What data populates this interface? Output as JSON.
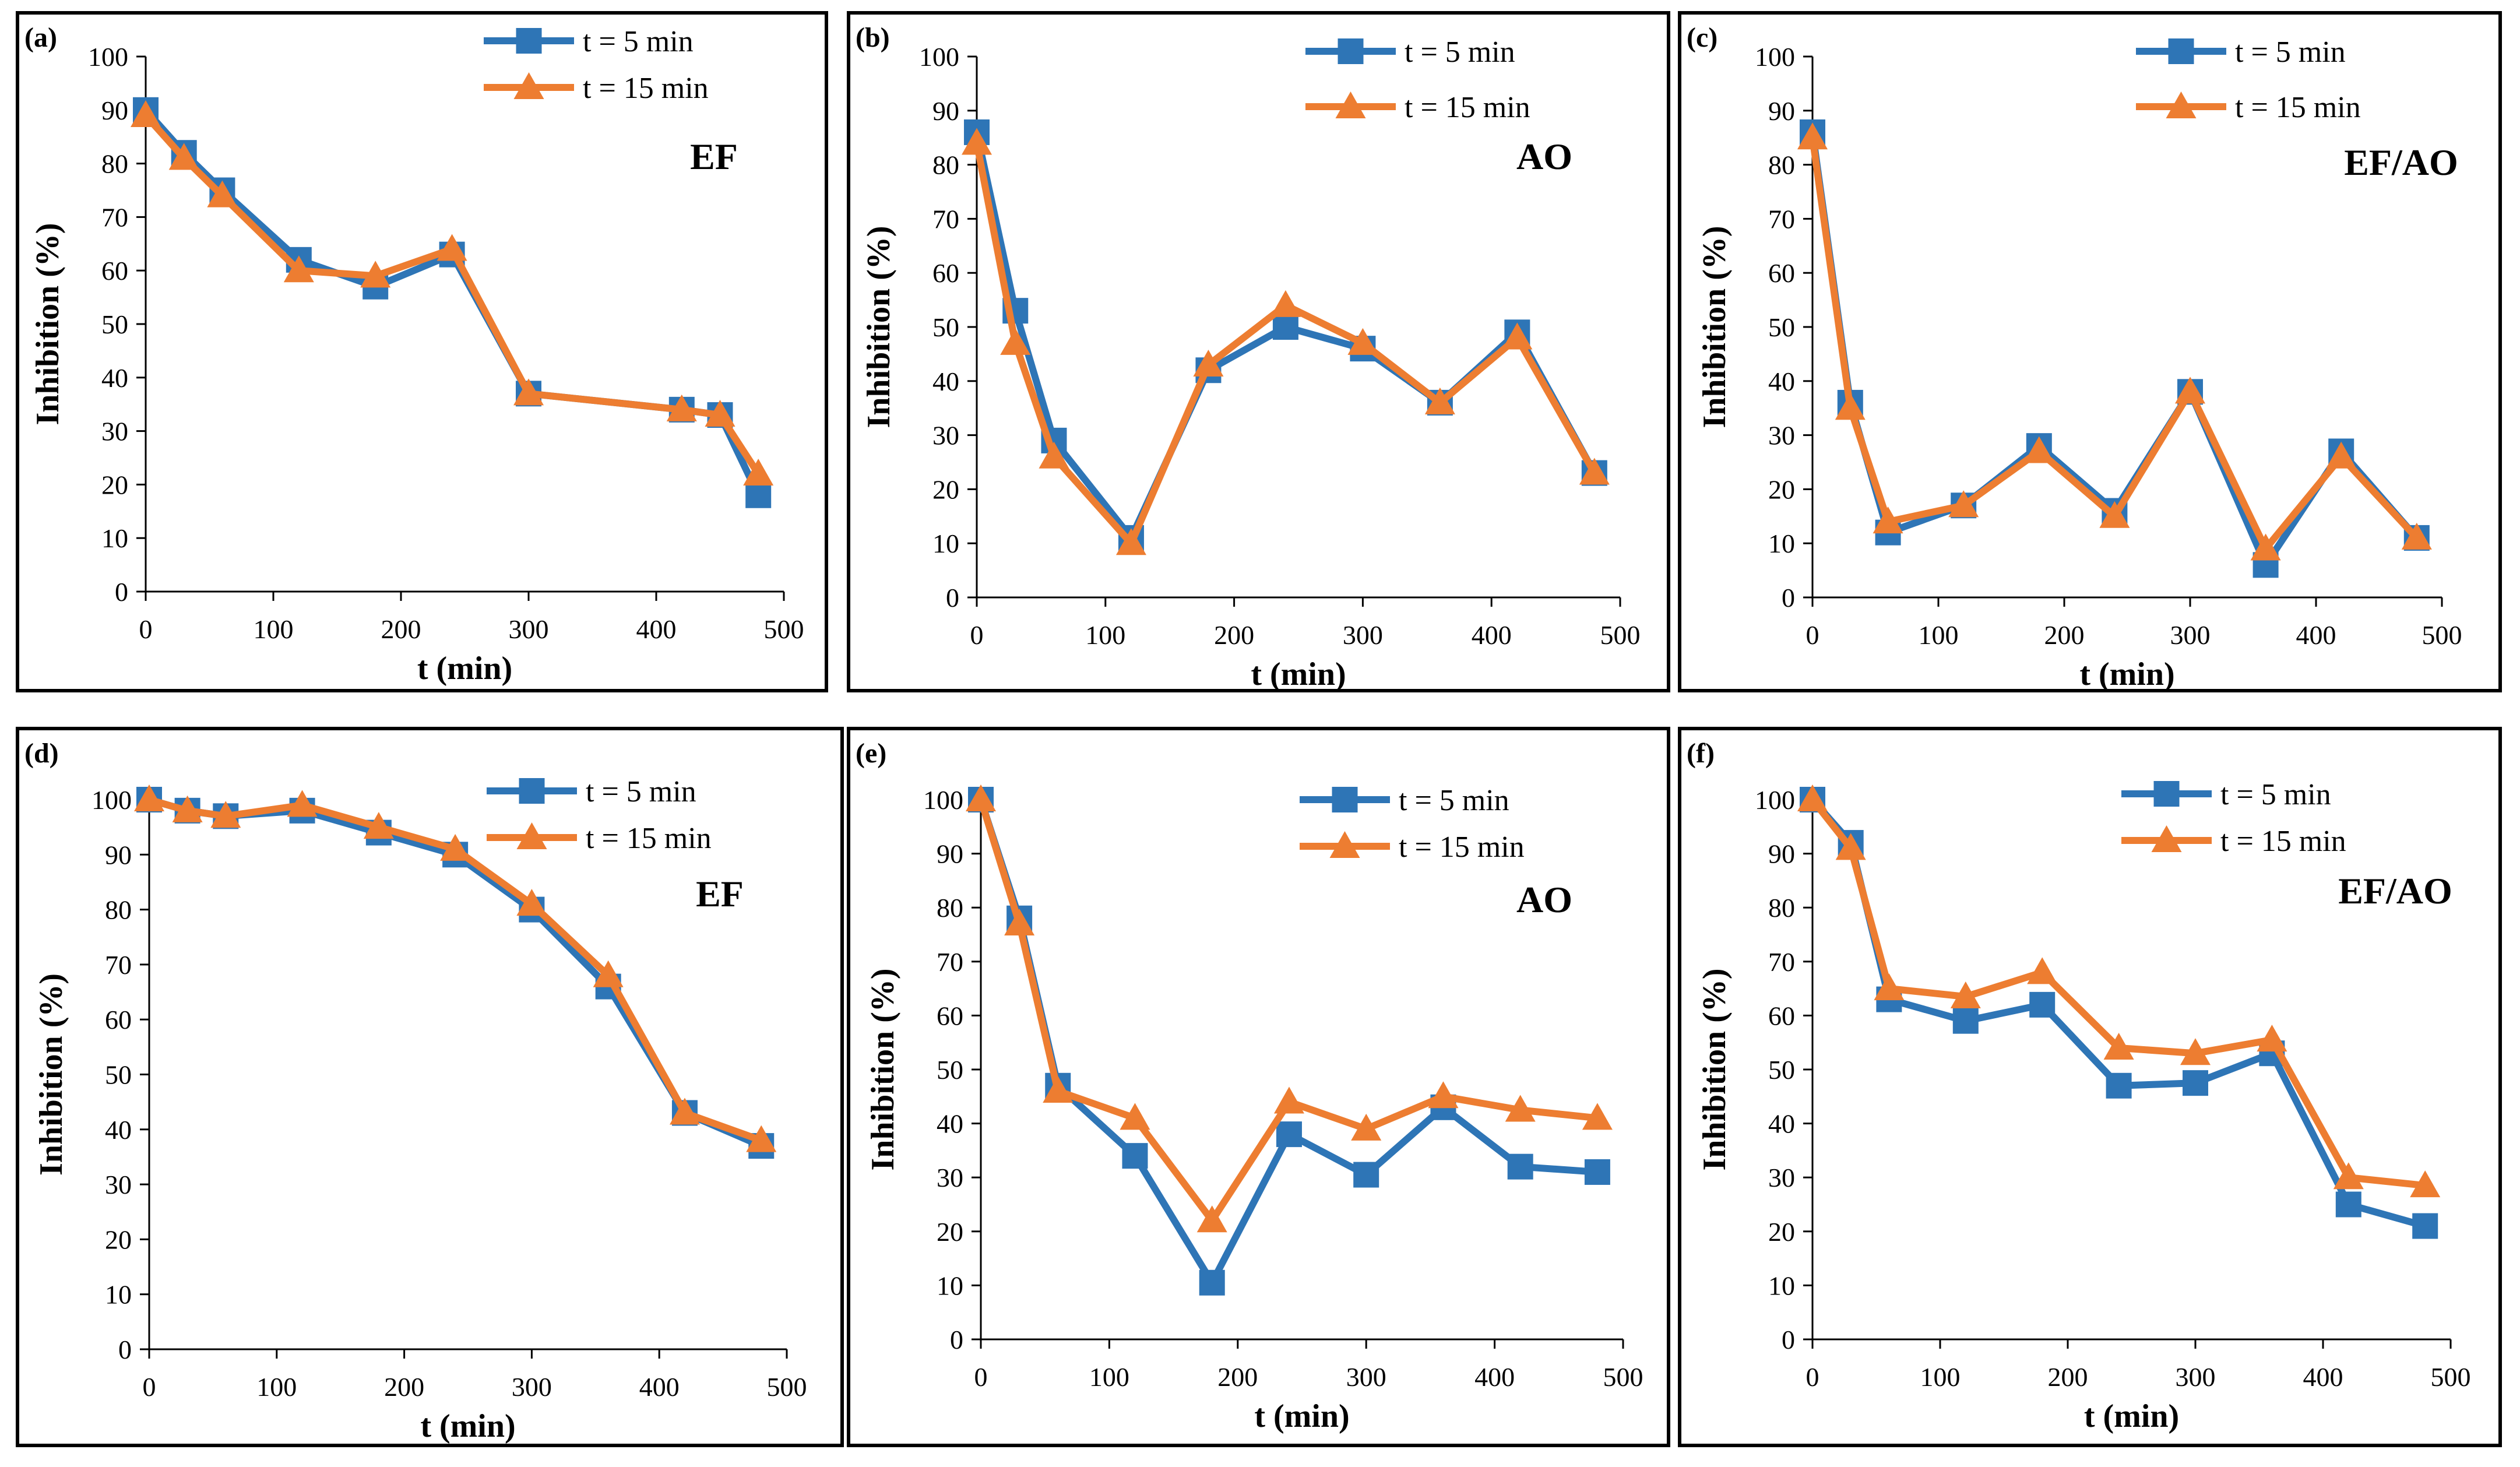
{
  "colors": {
    "series_1": "#2e75b6",
    "series_2": "#ed7d31",
    "frame": "#000000",
    "background": "#ffffff"
  },
  "legend": {
    "series_1": "t = 5 min",
    "series_2": "t = 15 min"
  },
  "chart_data": [
    {
      "type": "line",
      "tag": "(a)",
      "annotation": "EF",
      "title": "",
      "xlabel": "t (min)",
      "ylabel": "Inhibition (%)",
      "xlim": [
        0,
        500
      ],
      "ylim": [
        0,
        100
      ],
      "xticks": [
        0,
        100,
        200,
        300,
        400,
        500
      ],
      "yticks": [
        0,
        10,
        20,
        30,
        40,
        50,
        60,
        70,
        80,
        90,
        100
      ],
      "grid": false,
      "legend_position": "top-right",
      "series": [
        {
          "name": "t = 5 min",
          "x": [
            0,
            30,
            60,
            120,
            180,
            240,
            300,
            420,
            450,
            480
          ],
          "y": [
            90,
            82,
            75,
            62,
            57,
            63,
            37,
            34,
            33,
            18
          ]
        },
        {
          "name": "t = 15 min",
          "x": [
            0,
            30,
            60,
            120,
            180,
            240,
            300,
            420,
            450,
            480
          ],
          "y": [
            89,
            81,
            74,
            60,
            59,
            64,
            37,
            34,
            33,
            22
          ]
        }
      ]
    },
    {
      "type": "line",
      "tag": "(b)",
      "annotation": "AO",
      "title": "",
      "xlabel": "t (min)",
      "ylabel": "Inhibition (%)",
      "xlim": [
        0,
        500
      ],
      "ylim": [
        0,
        100
      ],
      "xticks": [
        0,
        100,
        200,
        300,
        400,
        500
      ],
      "yticks": [
        0,
        10,
        20,
        30,
        40,
        50,
        60,
        70,
        80,
        90,
        100
      ],
      "grid": false,
      "legend_position": "top-right",
      "series": [
        {
          "name": "t = 5 min",
          "x": [
            0,
            30,
            60,
            120,
            180,
            240,
            300,
            360,
            420,
            480
          ],
          "y": [
            86,
            53,
            29,
            11,
            42,
            50,
            46,
            36,
            49,
            23
          ]
        },
        {
          "name": "t = 15 min",
          "x": [
            0,
            30,
            60,
            120,
            180,
            240,
            300,
            360,
            420,
            480
          ],
          "y": [
            84,
            47,
            26,
            10,
            43,
            54,
            47,
            36,
            48,
            23
          ]
        }
      ]
    },
    {
      "type": "line",
      "tag": "(c)",
      "annotation": "EF/AO",
      "title": "",
      "xlabel": "t (min)",
      "ylabel": "Inhibition (%)",
      "xlim": [
        0,
        500
      ],
      "ylim": [
        0,
        100
      ],
      "xticks": [
        0,
        100,
        200,
        300,
        400,
        500
      ],
      "yticks": [
        0,
        10,
        20,
        30,
        40,
        50,
        60,
        70,
        80,
        90,
        100
      ],
      "grid": false,
      "legend_position": "top-right",
      "series": [
        {
          "name": "t = 5 min",
          "x": [
            0,
            30,
            60,
            120,
            180,
            240,
            300,
            360,
            420,
            480
          ],
          "y": [
            86,
            36,
            12,
            17,
            28,
            16,
            38,
            6,
            27,
            11
          ]
        },
        {
          "name": "t = 15 min",
          "x": [
            0,
            30,
            60,
            120,
            180,
            240,
            300,
            360,
            420,
            480
          ],
          "y": [
            85,
            35,
            14,
            17,
            27,
            15,
            38,
            9,
            26,
            11
          ]
        }
      ]
    },
    {
      "type": "line",
      "tag": "(d)",
      "annotation": "EF",
      "title": "",
      "xlabel": "t (min)",
      "ylabel": "Inhibition (%)",
      "xlim": [
        0,
        500
      ],
      "ylim": [
        0,
        100
      ],
      "xticks": [
        0,
        100,
        200,
        300,
        400,
        500
      ],
      "yticks": [
        0,
        10,
        20,
        30,
        40,
        50,
        60,
        70,
        80,
        90,
        100
      ],
      "grid": false,
      "legend_position": "top-right",
      "series": [
        {
          "name": "t = 5 min",
          "x": [
            0,
            30,
            60,
            120,
            180,
            240,
            300,
            360,
            420,
            480
          ],
          "y": [
            100,
            98,
            97,
            98,
            94,
            90,
            80,
            66,
            43,
            37
          ]
        },
        {
          "name": "t = 15 min",
          "x": [
            0,
            30,
            60,
            120,
            180,
            240,
            300,
            360,
            420,
            480
          ],
          "y": [
            100,
            98,
            97,
            99,
            95,
            91,
            81,
            68,
            43,
            38
          ]
        }
      ]
    },
    {
      "type": "line",
      "tag": "(e)",
      "annotation": "AO",
      "title": "",
      "xlabel": "t (min)",
      "ylabel": "Inhibition (%)",
      "xlim": [
        0,
        500
      ],
      "ylim": [
        0,
        100
      ],
      "xticks": [
        0,
        100,
        200,
        300,
        400,
        500
      ],
      "yticks": [
        0,
        10,
        20,
        30,
        40,
        50,
        60,
        70,
        80,
        90,
        100
      ],
      "grid": false,
      "legend_position": "top-right",
      "series": [
        {
          "name": "t = 5 min",
          "x": [
            0,
            30,
            60,
            120,
            180,
            240,
            300,
            360,
            420,
            480
          ],
          "y": [
            100,
            78,
            47,
            34,
            10.5,
            38,
            30.5,
            43,
            32,
            31
          ]
        },
        {
          "name": "t = 15 min",
          "x": [
            0,
            30,
            60,
            120,
            180,
            240,
            300,
            360,
            420,
            480
          ],
          "y": [
            100,
            77,
            46,
            41,
            22,
            44,
            39,
            45,
            42.5,
            41
          ]
        }
      ]
    },
    {
      "type": "line",
      "tag": "(f)",
      "annotation": "EF/AO",
      "title": "",
      "xlabel": "t (min)",
      "ylabel": "Inhibition (%)",
      "xlim": [
        0,
        500
      ],
      "ylim": [
        0,
        100
      ],
      "xticks": [
        0,
        100,
        200,
        300,
        400,
        500
      ],
      "yticks": [
        0,
        10,
        20,
        30,
        40,
        50,
        60,
        70,
        80,
        90,
        100
      ],
      "grid": false,
      "legend_position": "top-right",
      "series": [
        {
          "name": "t = 5 min",
          "x": [
            0,
            30,
            60,
            120,
            180,
            240,
            300,
            360,
            420,
            480
          ],
          "y": [
            100,
            92,
            63,
            59,
            62,
            47,
            47.5,
            53,
            25,
            21
          ]
        },
        {
          "name": "t = 15 min",
          "x": [
            0,
            30,
            60,
            120,
            180,
            240,
            300,
            360,
            420,
            480
          ],
          "y": [
            100,
            91,
            65,
            63.5,
            68,
            54,
            53,
            55.5,
            30,
            28.5
          ]
        }
      ]
    }
  ]
}
